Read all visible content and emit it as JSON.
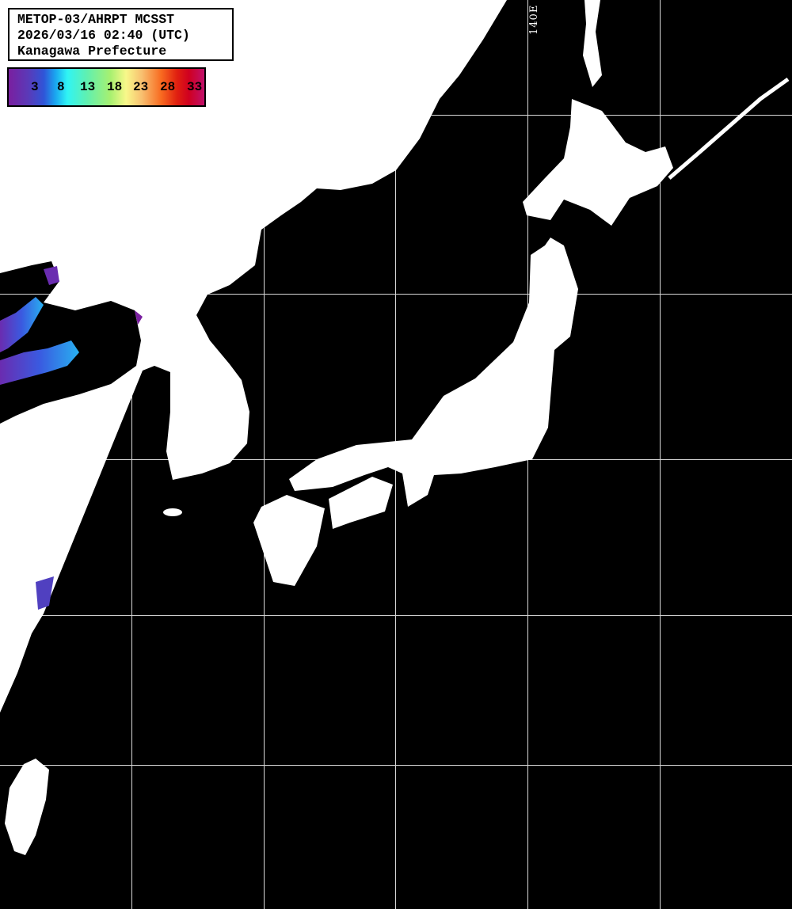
{
  "header": {
    "line1": "METOP-03/AHRPT MCSST",
    "line2": "2026/03/16 02:40 (UTC)",
    "line3": "Kanagawa Prefecture"
  },
  "colorbar": {
    "ticks": [
      "3",
      "8",
      "13",
      "18",
      "23",
      "28",
      "33"
    ],
    "colors": [
      "#7a1fa0",
      "#2f55d8",
      "#30f4f4",
      "#a8f070",
      "#f8f88a",
      "#f86a20",
      "#d00020",
      "#c0106a"
    ]
  },
  "grid": {
    "lon_label": "140E",
    "line_color": "#ffffff"
  },
  "map": {
    "land_color": "#ffffff",
    "sea_color": "#000000"
  }
}
